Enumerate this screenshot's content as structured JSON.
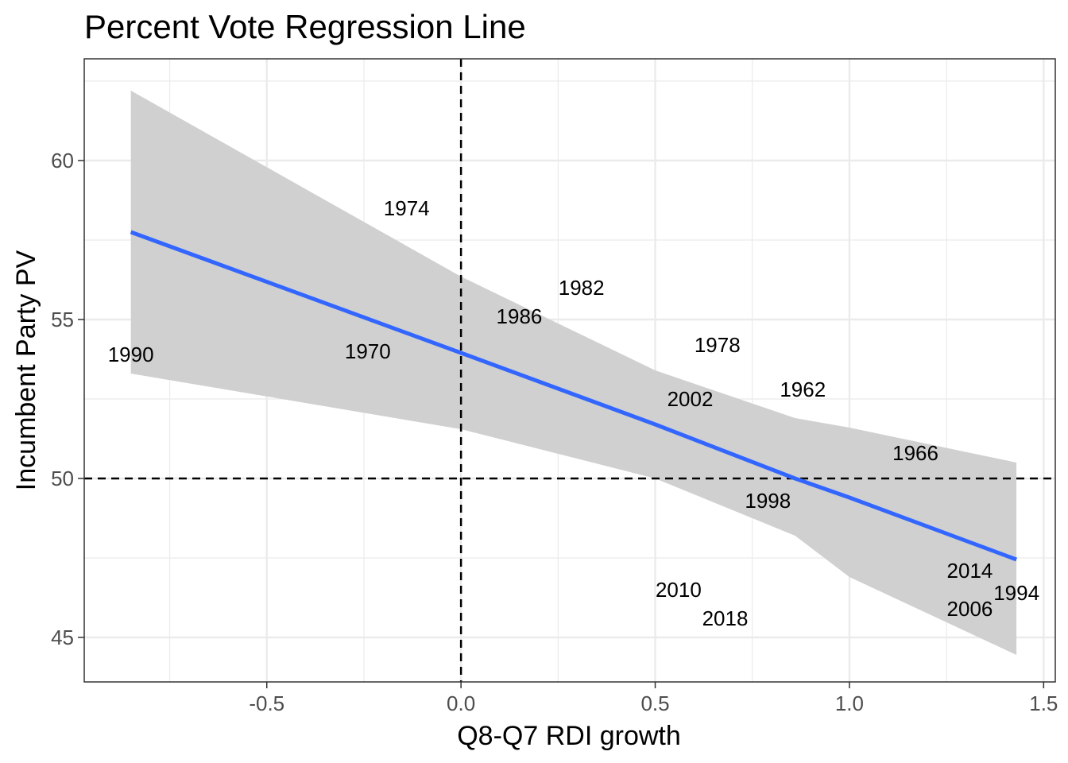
{
  "chart_data": {
    "type": "scatter",
    "title": "Percent Vote Regression Line",
    "xlabel": "Q8-Q7 RDI growth",
    "ylabel": "Incumbent Party PV",
    "xlim": [
      -0.97,
      1.53
    ],
    "ylim": [
      43.6,
      63.2
    ],
    "x_ticks": [
      -0.5,
      0.0,
      0.5,
      1.0,
      1.5
    ],
    "x_tick_labels": [
      "-0.5",
      "0.0",
      "0.5",
      "1.0",
      "1.5"
    ],
    "y_ticks": [
      45,
      50,
      55,
      60
    ],
    "y_tick_labels": [
      "45",
      "50",
      "55",
      "60"
    ],
    "grid": true,
    "reference_lines": {
      "x": 0,
      "y": 50,
      "style": "dashed"
    },
    "points": [
      {
        "label": "1990",
        "x": -0.85,
        "y": 53.9
      },
      {
        "label": "1970",
        "x": -0.24,
        "y": 54.0
      },
      {
        "label": "1974",
        "x": -0.14,
        "y": 58.5
      },
      {
        "label": "1986",
        "x": 0.15,
        "y": 55.1
      },
      {
        "label": "1982",
        "x": 0.31,
        "y": 56.0
      },
      {
        "label": "2010",
        "x": 0.56,
        "y": 46.5
      },
      {
        "label": "2002",
        "x": 0.59,
        "y": 52.5
      },
      {
        "label": "1978",
        "x": 0.66,
        "y": 54.2
      },
      {
        "label": "2018",
        "x": 0.68,
        "y": 45.6
      },
      {
        "label": "1998",
        "x": 0.79,
        "y": 49.3
      },
      {
        "label": "1962",
        "x": 0.88,
        "y": 52.8
      },
      {
        "label": "1966",
        "x": 1.17,
        "y": 50.8
      },
      {
        "label": "2014",
        "x": 1.31,
        "y": 47.1
      },
      {
        "label": "2006",
        "x": 1.31,
        "y": 45.9
      },
      {
        "label": "1994",
        "x": 1.43,
        "y": 46.4
      }
    ],
    "regression": {
      "x": [
        -0.85,
        0.0,
        0.5,
        0.86,
        1.0,
        1.43
      ],
      "fit": [
        57.75,
        53.95,
        51.7,
        50.0,
        49.4,
        47.45
      ],
      "lower": [
        53.3,
        51.55,
        50.0,
        48.2,
        46.9,
        44.45
      ],
      "upper": [
        62.2,
        56.35,
        53.4,
        51.9,
        51.6,
        50.5
      ]
    },
    "colors": {
      "fit_line": "#3366ff",
      "confidence_band": "#d0d0d0",
      "grid": "#ebebeb",
      "panel_border": "#333333",
      "reference_line": "#000000"
    }
  }
}
